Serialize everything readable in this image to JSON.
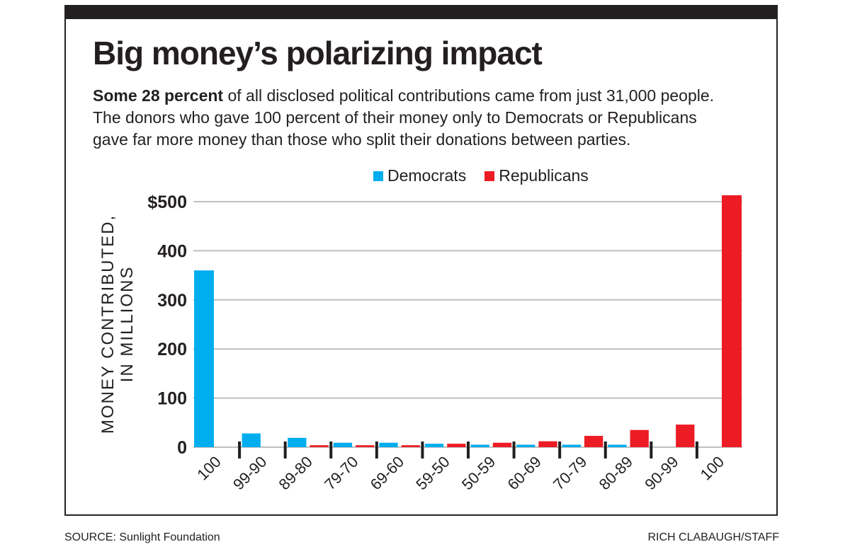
{
  "title": "Big money’s polarizing impact",
  "subtitle_bold": "Some 28 percent",
  "subtitle_rest": " of all disclosed political contributions came from just 31,000 people. The donors who gave 100 percent of their money only to Democrats or Republicans gave far more money than those who split their donations between parties.",
  "footer": {
    "source": "SOURCE: Sunlight Foundation",
    "credit": "RICH CLABAUGH/STAFF"
  },
  "colors": {
    "democrats": "#00aeef",
    "republicans": "#ed1c24",
    "grid": "#c0c0c0",
    "text": "#231f20"
  },
  "chart_data": {
    "type": "bar",
    "title": "Big money’s polarizing impact",
    "ylabel": "MONEY CONTRIBUTED, IN MILLIONS",
    "xlabel": "",
    "ylim": [
      0,
      500
    ],
    "yticks": [
      0,
      100,
      200,
      300,
      400,
      500
    ],
    "ytick_labels": [
      "0",
      "100",
      "200",
      "300",
      "400",
      "$500"
    ],
    "grid": true,
    "legend_position": "top-center",
    "categories": [
      "100",
      "99-90",
      "89-80",
      "79-70",
      "69-60",
      "59-50",
      "50-59",
      "60-69",
      "70-79",
      "80-89",
      "90-99",
      "100"
    ],
    "series": [
      {
        "name": "Democrats",
        "values": [
          360,
          28,
          19,
          9,
          9,
          7,
          5,
          5,
          5,
          5,
          null,
          null
        ]
      },
      {
        "name": "Republicans",
        "values": [
          null,
          null,
          4,
          4,
          4,
          7,
          9,
          12,
          23,
          35,
          46,
          513
        ]
      }
    ]
  }
}
